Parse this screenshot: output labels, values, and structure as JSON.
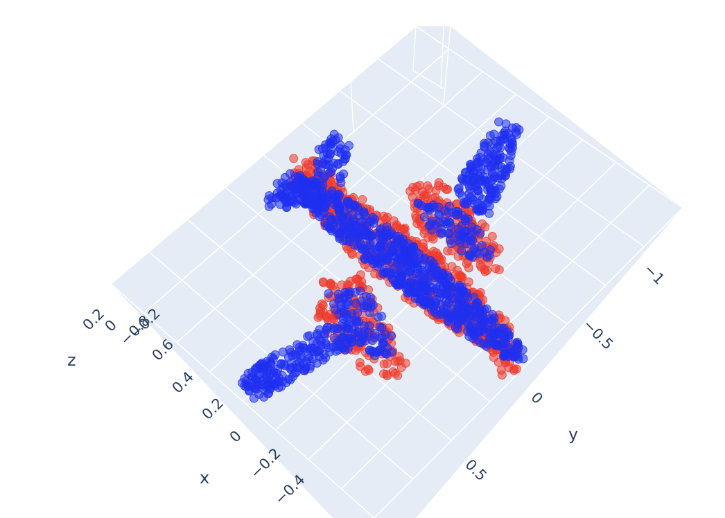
{
  "chart_data": {
    "type": "scatter",
    "subtype": "3d-point-cloud",
    "description_visible": "3D scatter of two point clouds forming an airplane shape",
    "background_color": "#e5ecf6",
    "grid": true,
    "axes": {
      "x": {
        "title": "x",
        "ticks": [
          "0.6",
          "0.4",
          "0.2",
          "0",
          "−0.2",
          "−0.4"
        ]
      },
      "y": {
        "title": "y",
        "ticks": [
          "−1",
          "−0.5",
          "0",
          "0.5"
        ]
      },
      "z": {
        "title": "z",
        "ticks": [
          "0.2",
          "0",
          "−0.2"
        ]
      },
      "x_extra_tick": "−0.8"
    },
    "series": [
      {
        "color": "#ef3b2c"
      },
      {
        "color": "#1f2ff0"
      }
    ]
  }
}
